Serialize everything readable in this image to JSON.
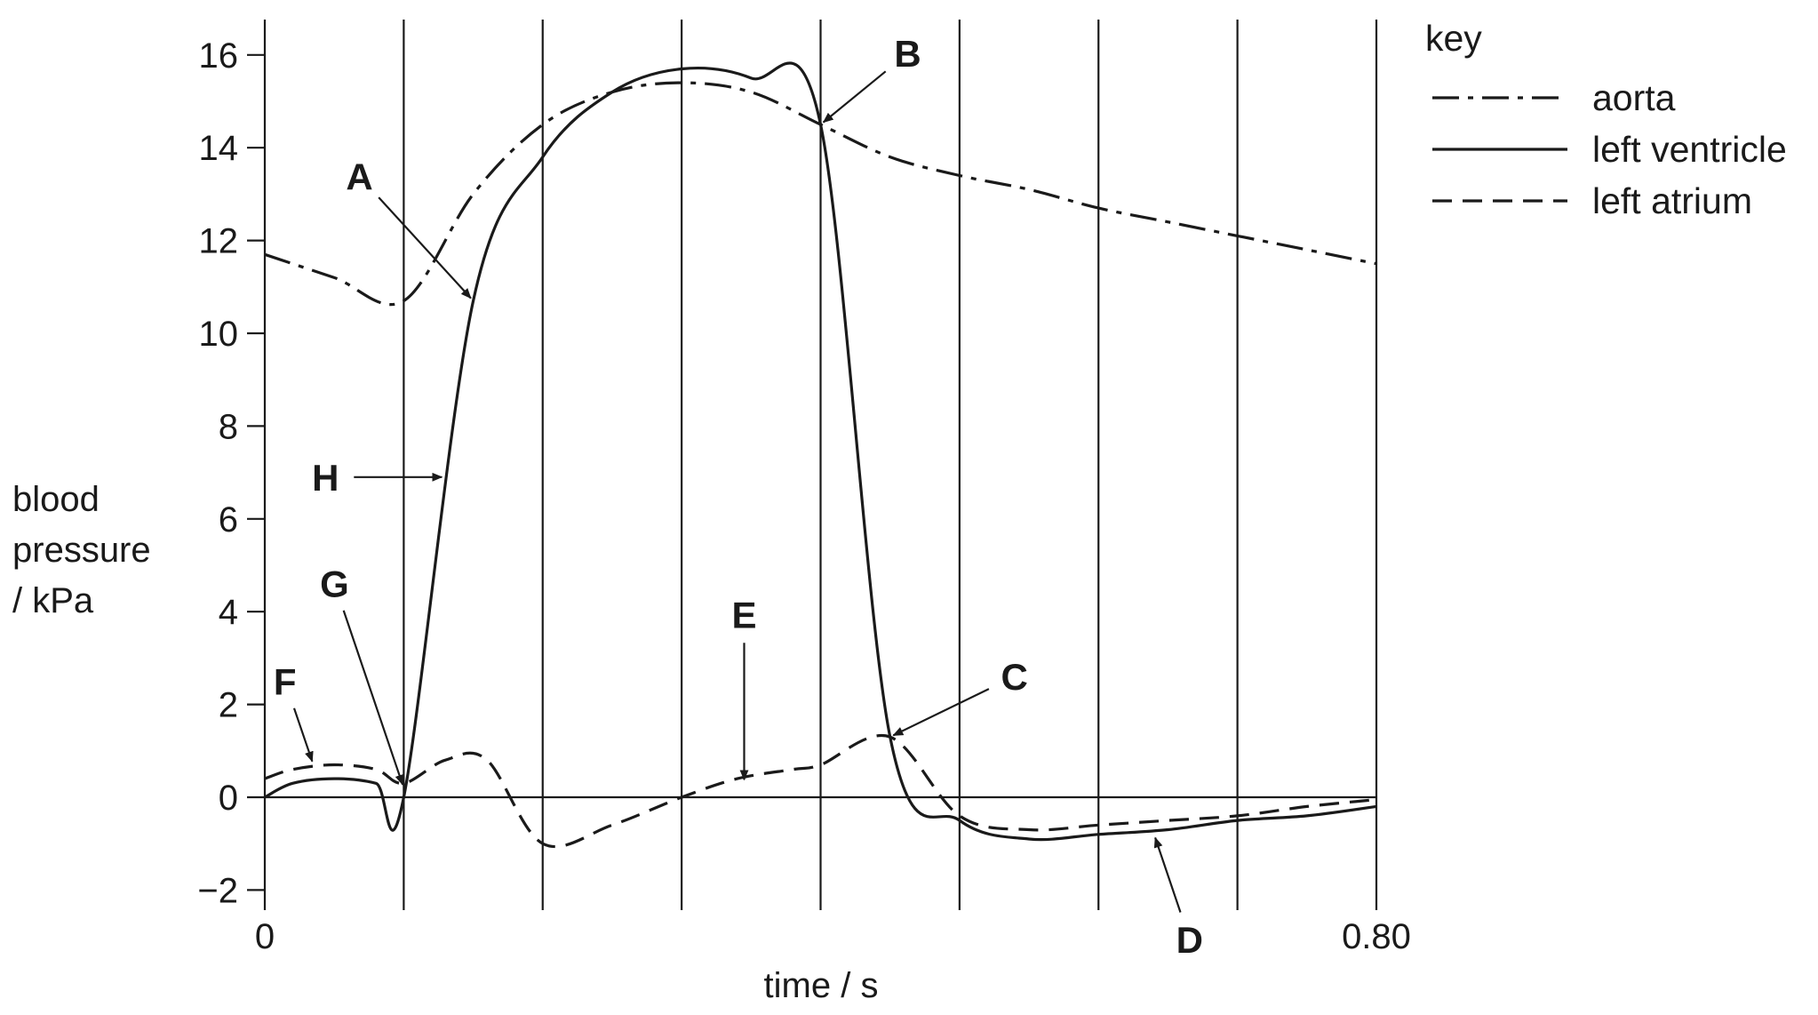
{
  "chart_data": {
    "type": "line",
    "xlabel": "time / s",
    "ylabel_lines": [
      "blood",
      "pressure",
      "/ kPa"
    ],
    "xlim": [
      0,
      0.8
    ],
    "ylim": [
      -2.4,
      16.6
    ],
    "x_tick_labels": [
      {
        "x": 0,
        "label": "0"
      },
      {
        "x": 0.8,
        "label": "0.80"
      }
    ],
    "y_ticks": [
      -2,
      0,
      2,
      4,
      6,
      8,
      10,
      12,
      14,
      16
    ],
    "y_tick_labels": [
      "−2",
      "0",
      "2",
      "4",
      "6",
      "8",
      "10",
      "12",
      "14",
      "16"
    ],
    "vertical_gridlines": [
      0,
      0.1,
      0.2,
      0.3,
      0.4,
      0.5,
      0.6,
      0.7,
      0.8
    ],
    "legend": {
      "title": "key",
      "position": "top-right",
      "items": [
        {
          "series": "aorta",
          "label": "aorta",
          "dash": "dash-dot"
        },
        {
          "series": "left-ventricle",
          "label": "left ventricle",
          "dash": "solid"
        },
        {
          "series": "left-atrium",
          "label": "left atrium",
          "dash": "dashed"
        }
      ]
    },
    "series": [
      {
        "name": "aorta",
        "x": [
          0,
          0.05,
          0.1,
          0.15,
          0.2,
          0.25,
          0.3,
          0.35,
          0.4,
          0.45,
          0.5,
          0.55,
          0.6,
          0.65,
          0.7,
          0.75,
          0.8
        ],
        "y": [
          11.7,
          11.2,
          10.7,
          13.0,
          14.5,
          15.2,
          15.4,
          15.2,
          14.5,
          13.8,
          13.4,
          13.1,
          12.7,
          12.4,
          12.1,
          11.8,
          11.5
        ]
      },
      {
        "name": "left ventricle",
        "x": [
          0,
          0.02,
          0.05,
          0.08,
          0.1,
          0.15,
          0.2,
          0.25,
          0.3,
          0.35,
          0.4,
          0.45,
          0.5,
          0.55,
          0.6,
          0.65,
          0.7,
          0.75,
          0.8
        ],
        "y": [
          0,
          0.3,
          0.4,
          0.3,
          0,
          10.7,
          13.8,
          15.2,
          15.7,
          15.5,
          14.5,
          1.3,
          -0.5,
          -0.9,
          -0.8,
          -0.7,
          -0.5,
          -0.4,
          -0.2
        ]
      },
      {
        "name": "left atrium",
        "x": [
          0,
          0.02,
          0.05,
          0.08,
          0.1,
          0.13,
          0.16,
          0.2,
          0.25,
          0.3,
          0.34,
          0.38,
          0.4,
          0.45,
          0.5,
          0.55,
          0.6,
          0.65,
          0.7,
          0.75,
          0.8
        ],
        "y": [
          0.4,
          0.6,
          0.7,
          0.6,
          0.3,
          0.8,
          0.8,
          -1.0,
          -0.6,
          0,
          0.4,
          0.6,
          0.7,
          1.3,
          -0.4,
          -0.7,
          -0.6,
          -0.5,
          -0.4,
          -0.2,
          -0.05
        ]
      }
    ],
    "annotations": [
      {
        "label": "A",
        "x": 0.15,
        "y": 10.7
      },
      {
        "label": "B",
        "x": 0.4,
        "y": 14.5
      },
      {
        "label": "C",
        "x": 0.45,
        "y": 1.3
      },
      {
        "label": "D",
        "x": 0.64,
        "y": -0.8
      },
      {
        "label": "E",
        "x": 0.345,
        "y": 0.3
      },
      {
        "label": "F",
        "x": 0.035,
        "y": 0.7
      },
      {
        "label": "G",
        "x": 0.1,
        "y": 0.2
      },
      {
        "label": "H",
        "x": 0.13,
        "y": 6.9
      }
    ]
  }
}
